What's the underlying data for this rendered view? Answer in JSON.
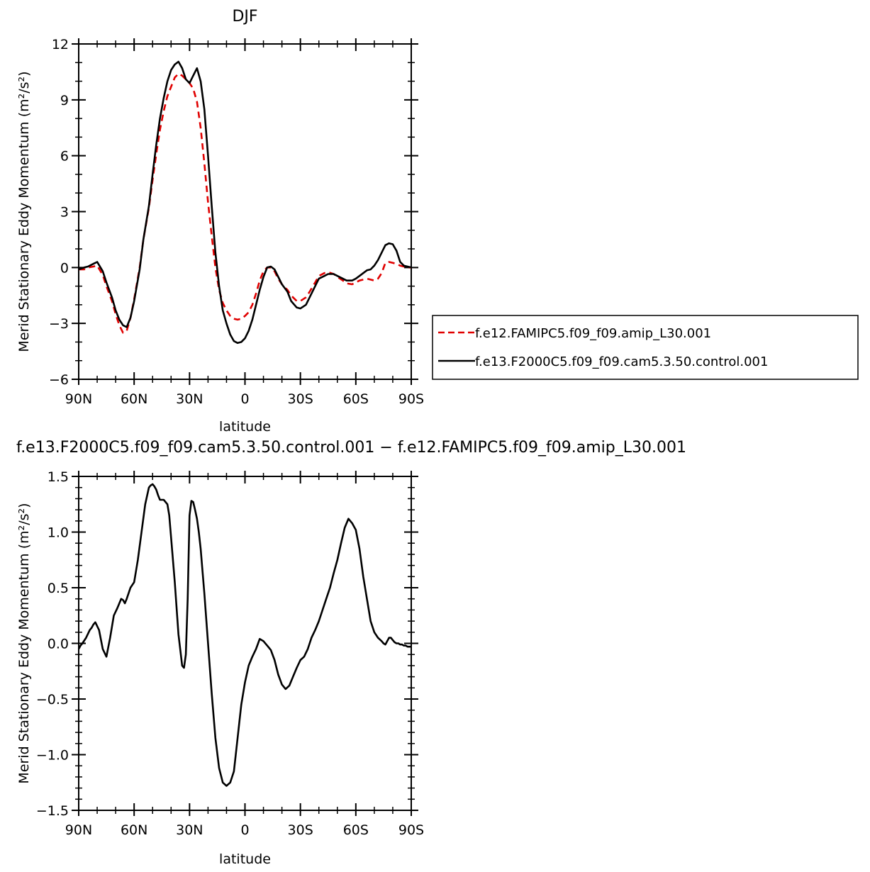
{
  "chart_data": [
    {
      "type": "line",
      "title": "DJF",
      "xlabel": "latitude",
      "ylabel": "Merid Stationary Eddy Momentum (m²/s²)",
      "x_ticks": [
        {
          "value": 90,
          "label": "90N"
        },
        {
          "value": 60,
          "label": "60N"
        },
        {
          "value": 30,
          "label": "30N"
        },
        {
          "value": 0,
          "label": "0"
        },
        {
          "value": -30,
          "label": "30S"
        },
        {
          "value": -60,
          "label": "60S"
        },
        {
          "value": -90,
          "label": "90S"
        }
      ],
      "y_ticks": [
        {
          "value": 12,
          "label": "12"
        },
        {
          "value": 9,
          "label": "9"
        },
        {
          "value": 6,
          "label": "6"
        },
        {
          "value": 3,
          "label": "3"
        },
        {
          "value": 0,
          "label": "0"
        },
        {
          "value": -3,
          "label": "−3"
        },
        {
          "value": -6,
          "label": "−6"
        }
      ],
      "xlim": [
        90,
        -90
      ],
      "ylim": [
        -6,
        12
      ],
      "grid": false,
      "legend_position": "right",
      "series": [
        {
          "name": "f.e12.FAMIPC5.f09_f09.amip_L30.001",
          "color": "#e00000",
          "dash": "dashed",
          "x": [
            90,
            87,
            85,
            82,
            80,
            77,
            75,
            72,
            70,
            68,
            66,
            64,
            62,
            60,
            57,
            55,
            52,
            50,
            48,
            46,
            44,
            42,
            40,
            38,
            36,
            34,
            32,
            30,
            28,
            26,
            24,
            22,
            20,
            18,
            16,
            14,
            12,
            10,
            8,
            6,
            4,
            2,
            0,
            -2,
            -4,
            -6,
            -8,
            -10,
            -12,
            -14,
            -16,
            -18,
            -20,
            -23,
            -25,
            -28,
            -30,
            -33,
            -35,
            -38,
            -40,
            -43,
            -45,
            -48,
            -50,
            -53,
            -55,
            -58,
            -60,
            -62,
            -64,
            -66,
            -68,
            -70,
            -72,
            -74,
            -76,
            -78,
            -80,
            -82,
            -84,
            -86,
            -88,
            -90
          ],
          "y": [
            -0.1,
            -0.1,
            0.0,
            0.05,
            0.1,
            -0.4,
            -1.0,
            -1.8,
            -2.5,
            -3.1,
            -3.5,
            -3.4,
            -2.7,
            -1.7,
            0.0,
            1.5,
            3.2,
            4.7,
            6.1,
            7.4,
            8.4,
            9.2,
            9.7,
            10.2,
            10.4,
            10.3,
            10.1,
            9.9,
            9.6,
            8.9,
            7.5,
            5.6,
            3.5,
            1.7,
            0.0,
            -1.2,
            -1.9,
            -2.3,
            -2.6,
            -2.75,
            -2.8,
            -2.75,
            -2.6,
            -2.4,
            -2.0,
            -1.4,
            -0.7,
            -0.2,
            0.0,
            0.0,
            -0.2,
            -0.6,
            -0.9,
            -1.2,
            -1.5,
            -1.8,
            -1.8,
            -1.6,
            -1.3,
            -0.8,
            -0.45,
            -0.3,
            -0.25,
            -0.35,
            -0.5,
            -0.7,
            -0.85,
            -0.9,
            -0.8,
            -0.7,
            -0.65,
            -0.6,
            -0.65,
            -0.7,
            -0.6,
            -0.3,
            0.25,
            0.3,
            0.25,
            0.2,
            0.1,
            0.05,
            0.0,
            0.0
          ]
        },
        {
          "name": "f.e13.F2000C5.f09_f09.cam5.3.50.control.001",
          "color": "#000000",
          "dash": "solid",
          "x": [
            90,
            87,
            85,
            82,
            80,
            77,
            75,
            72,
            70,
            68,
            66,
            64,
            62,
            60,
            57,
            55,
            52,
            50,
            48,
            46,
            44,
            42,
            40,
            38,
            36,
            34,
            32,
            30,
            28,
            26,
            24,
            22,
            20,
            18,
            16,
            14,
            12,
            10,
            8,
            6,
            4,
            2,
            0,
            -2,
            -4,
            -6,
            -8,
            -10,
            -12,
            -14,
            -16,
            -18,
            -20,
            -23,
            -25,
            -28,
            -30,
            -33,
            -35,
            -38,
            -40,
            -43,
            -45,
            -48,
            -50,
            -53,
            -55,
            -58,
            -60,
            -62,
            -64,
            -66,
            -68,
            -70,
            -72,
            -74,
            -76,
            -78,
            -80,
            -82,
            -84,
            -86,
            -88,
            -90
          ],
          "y": [
            -0.1,
            0.0,
            0.05,
            0.2,
            0.3,
            -0.2,
            -0.8,
            -1.6,
            -2.3,
            -2.8,
            -3.1,
            -3.2,
            -2.7,
            -1.8,
            -0.1,
            1.5,
            3.3,
            5.0,
            6.6,
            8.0,
            9.1,
            10.0,
            10.6,
            10.9,
            11.05,
            10.7,
            10.1,
            9.9,
            10.3,
            10.7,
            10.0,
            8.5,
            6.0,
            3.3,
            0.8,
            -1.0,
            -2.3,
            -3.0,
            -3.6,
            -3.95,
            -4.05,
            -4.0,
            -3.8,
            -3.4,
            -2.8,
            -2.0,
            -1.2,
            -0.5,
            0.0,
            0.05,
            -0.1,
            -0.5,
            -0.9,
            -1.3,
            -1.8,
            -2.15,
            -2.2,
            -2.0,
            -1.6,
            -1.0,
            -0.6,
            -0.45,
            -0.35,
            -0.35,
            -0.45,
            -0.6,
            -0.7,
            -0.7,
            -0.6,
            -0.45,
            -0.3,
            -0.15,
            -0.1,
            0.1,
            0.4,
            0.8,
            1.2,
            1.3,
            1.25,
            0.9,
            0.3,
            0.1,
            0.05,
            0.0
          ]
        }
      ]
    },
    {
      "type": "line",
      "title": "f.e13.F2000C5.f09_f09.cam5.3.50.control.001 − f.e12.FAMIPC5.f09_f09.amip_L30.001",
      "xlabel": "latitude",
      "ylabel": "Merid Stationary Eddy Momentum (m²/s²)",
      "x_ticks": [
        {
          "value": 90,
          "label": "90N"
        },
        {
          "value": 60,
          "label": "60N"
        },
        {
          "value": 30,
          "label": "30N"
        },
        {
          "value": 0,
          "label": "0"
        },
        {
          "value": -30,
          "label": "30S"
        },
        {
          "value": -60,
          "label": "60S"
        },
        {
          "value": -90,
          "label": "90S"
        }
      ],
      "y_ticks": [
        {
          "value": 1.5,
          "label": "1.5"
        },
        {
          "value": 1.0,
          "label": "1.0"
        },
        {
          "value": 0.5,
          "label": "0.5"
        },
        {
          "value": 0.0,
          "label": "0.0"
        },
        {
          "value": -0.5,
          "label": "−0.5"
        },
        {
          "value": -1.0,
          "label": "−1.0"
        },
        {
          "value": -1.5,
          "label": "−1.5"
        }
      ],
      "xlim": [
        90,
        -90
      ],
      "ylim": [
        -1.5,
        1.5
      ],
      "grid": false,
      "series": [
        {
          "color": "#000000",
          "dash": "solid",
          "x": [
            90,
            89,
            88,
            86,
            84,
            83,
            82,
            81,
            79,
            77,
            75,
            73,
            71,
            69,
            67,
            66,
            65,
            64,
            62,
            60,
            58,
            56,
            54,
            52,
            51,
            50,
            49,
            48,
            47,
            46,
            45,
            44,
            42,
            41,
            40,
            38,
            36,
            34,
            33,
            32,
            31,
            30,
            29,
            28,
            27,
            26,
            25,
            24,
            23,
            22,
            20,
            18,
            16,
            14,
            12,
            10,
            8,
            6,
            5,
            4,
            3,
            2,
            0,
            -2,
            -4,
            -6,
            -8,
            -10,
            -12,
            -14,
            -16,
            -18,
            -20,
            -22,
            -24,
            -26,
            -28,
            -30,
            -32,
            -34,
            -36,
            -38,
            -40,
            -42,
            -44,
            -46,
            -48,
            -50,
            -52,
            -54,
            -56,
            -58,
            -60,
            -62,
            -64,
            -66,
            -68,
            -70,
            -72,
            -74,
            -75,
            -76,
            -77,
            -78,
            -79,
            -80,
            -81,
            -82,
            -83,
            -84,
            -85,
            -86,
            -87,
            -88,
            -89,
            -90
          ],
          "y": [
            -0.05,
            -0.02,
            0.0,
            0.05,
            0.12,
            0.14,
            0.17,
            0.19,
            0.12,
            -0.05,
            -0.12,
            0.05,
            0.25,
            0.32,
            0.4,
            0.39,
            0.36,
            0.4,
            0.5,
            0.55,
            0.75,
            1.0,
            1.25,
            1.4,
            1.42,
            1.43,
            1.41,
            1.38,
            1.33,
            1.29,
            1.29,
            1.29,
            1.25,
            1.15,
            0.95,
            0.55,
            0.08,
            -0.2,
            -0.22,
            -0.1,
            0.4,
            1.15,
            1.28,
            1.27,
            1.2,
            1.12,
            1.0,
            0.85,
            0.65,
            0.45,
            0.0,
            -0.45,
            -0.85,
            -1.12,
            -1.25,
            -1.28,
            -1.25,
            -1.15,
            -1.0,
            -0.85,
            -0.7,
            -0.55,
            -0.35,
            -0.2,
            -0.12,
            -0.05,
            0.04,
            0.02,
            -0.02,
            -0.06,
            -0.15,
            -0.28,
            -0.37,
            -0.41,
            -0.38,
            -0.3,
            -0.22,
            -0.15,
            -0.12,
            -0.05,
            0.05,
            0.12,
            0.2,
            0.3,
            0.4,
            0.5,
            0.63,
            0.75,
            0.9,
            1.04,
            1.12,
            1.08,
            1.02,
            0.85,
            0.6,
            0.4,
            0.2,
            0.1,
            0.05,
            0.02,
            0.0,
            -0.01,
            0.02,
            0.05,
            0.05,
            0.03,
            0.01,
            0.0,
            0.0,
            -0.01,
            -0.01,
            -0.02,
            -0.02,
            -0.03,
            -0.03,
            -0.03
          ]
        }
      ]
    }
  ]
}
